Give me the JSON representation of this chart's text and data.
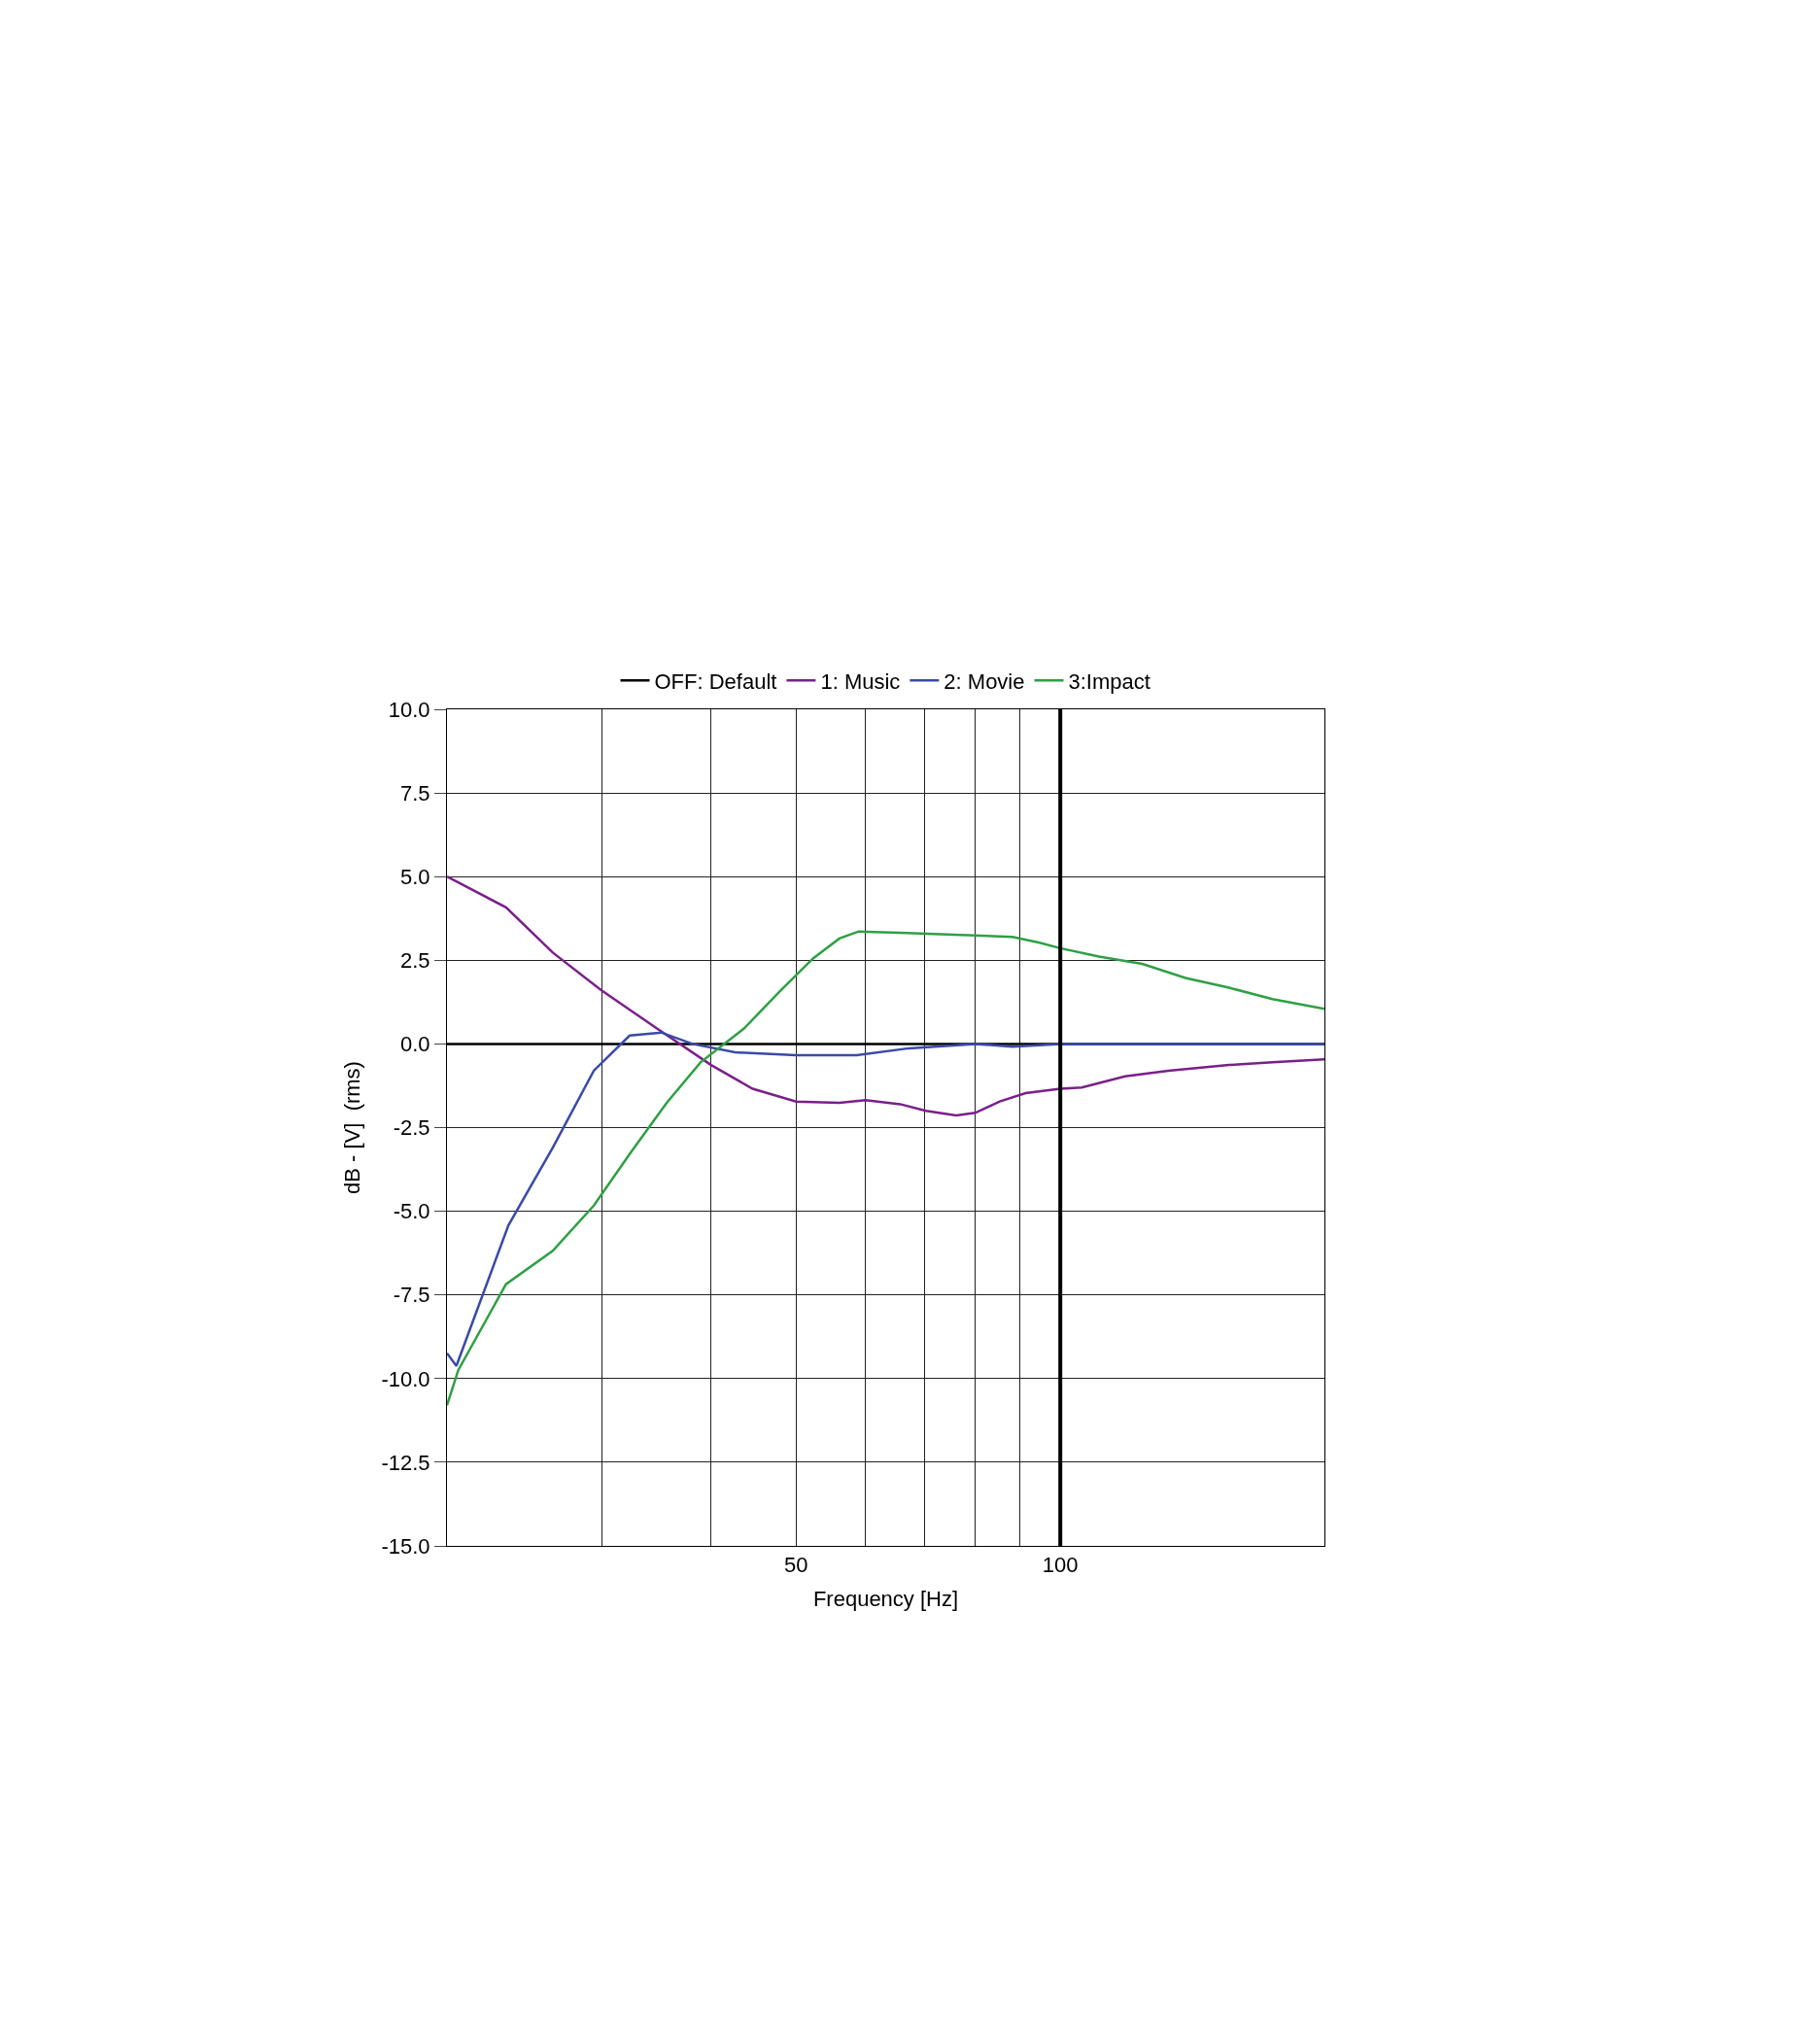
{
  "chart_data": {
    "type": "line",
    "xlabel": "Frequency [Hz]",
    "ylabel": "dB - [V]  (rms)",
    "log": "x",
    "xlim": [
      20,
      200
    ],
    "ylim": [
      -15,
      10
    ],
    "xticks": [
      {
        "value": 20,
        "label": null
      },
      {
        "value": 30,
        "label": null
      },
      {
        "value": 40,
        "label": null
      },
      {
        "value": 50,
        "label": "50"
      },
      {
        "value": 60,
        "label": null
      },
      {
        "value": 70,
        "label": null
      },
      {
        "value": 80,
        "label": null
      },
      {
        "value": 90,
        "label": null
      },
      {
        "value": 100,
        "label": "100"
      },
      {
        "value": 200,
        "label": null
      }
    ],
    "yticks": [
      {
        "value": -15,
        "label": "-15.0"
      },
      {
        "value": -12.5,
        "label": "-12.5"
      },
      {
        "value": -10,
        "label": "-10.0"
      },
      {
        "value": -7.5,
        "label": "-7.5"
      },
      {
        "value": -5,
        "label": "-5.0"
      },
      {
        "value": -2.5,
        "label": "-2.5"
      },
      {
        "value": 0,
        "label": "0.0"
      },
      {
        "value": 2.5,
        "label": "2.5"
      },
      {
        "value": 5,
        "label": "5.0"
      },
      {
        "value": 7.5,
        "label": "7.5"
      },
      {
        "value": 10,
        "label": "10.0"
      }
    ],
    "grid": true,
    "legend": "top",
    "ref_lines": [
      {
        "axis": "x",
        "value": 100,
        "color": "#000000"
      }
    ],
    "series": [
      {
        "name": "OFF: Default",
        "color": "#000000",
        "x": [
          20,
          200
        ],
        "values": [
          0,
          0
        ]
      },
      {
        "name": "1: Music",
        "color": "#7b1f8a",
        "x": [
          20,
          23.35,
          26.4,
          30,
          34.7,
          40,
          44.6,
          50,
          56,
          60,
          65.7,
          70.3,
          76.1,
          80,
          85.3,
          91.3,
          100,
          105.8,
          118.5,
          132.8,
          155.7,
          174.5,
          200
        ],
        "values": [
          5.0,
          4.08,
          2.73,
          1.6,
          0.46,
          -0.63,
          -1.34,
          -1.72,
          -1.76,
          -1.68,
          -1.8,
          -2.0,
          -2.14,
          -2.06,
          -1.72,
          -1.47,
          -1.34,
          -1.3,
          -0.97,
          -0.8,
          -0.63,
          -0.55,
          -0.46
        ]
      },
      {
        "name": "2: Movie",
        "color": "#3a4aa8",
        "x": [
          20,
          20.5,
          23.5,
          26.4,
          29.4,
          32.3,
          35.1,
          38.1,
          42.6,
          50,
          58.6,
          67.2,
          80,
          88.2,
          100,
          200
        ],
        "values": [
          -9.24,
          -9.62,
          -5.42,
          -3.1,
          -0.8,
          0.25,
          0.34,
          0,
          -0.25,
          -0.34,
          -0.34,
          -0.13,
          0,
          -0.08,
          0,
          0
        ]
      },
      {
        "name": "3:Impact",
        "color": "#2ea043",
        "x": [
          20,
          20.6,
          23.35,
          26.4,
          29.4,
          32.4,
          35.6,
          38.9,
          43.6,
          47.8,
          52.3,
          56,
          58.9,
          65.7,
          80,
          88.2,
          94.5,
          100,
          110.7,
          124,
          138.9,
          155.7,
          174.5,
          200
        ],
        "values": [
          -10.8,
          -9.75,
          -7.18,
          -6.18,
          -4.83,
          -3.24,
          -1.76,
          -0.55,
          0.46,
          1.55,
          2.56,
          3.15,
          3.36,
          3.32,
          3.24,
          3.2,
          3.03,
          2.86,
          2.61,
          2.39,
          1.97,
          1.68,
          1.34,
          1.05
        ]
      }
    ]
  }
}
